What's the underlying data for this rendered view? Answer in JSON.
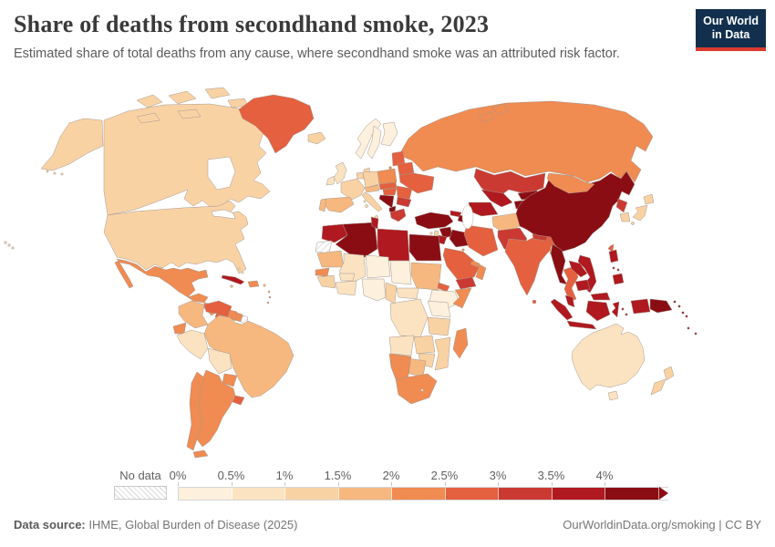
{
  "header": {
    "title": "Share of deaths from secondhand smoke, 2023",
    "subtitle": "Estimated share of total deaths from any cause, where secondhand smoke was an attributed risk factor.",
    "logo": {
      "line1": "Our World",
      "line2": "in Data",
      "bg_color": "#12304e",
      "accent_color": "#dc3a30"
    }
  },
  "legend": {
    "no_data_label": "No data",
    "bins": [
      {
        "label": "0%",
        "color": "#fdf0dc"
      },
      {
        "label": "0.5%",
        "color": "#fbe3c1"
      },
      {
        "label": "1%",
        "color": "#f9d2a4"
      },
      {
        "label": "1.5%",
        "color": "#f6b87f"
      },
      {
        "label": "2%",
        "color": "#f08b51"
      },
      {
        "label": "2.5%",
        "color": "#e4603f"
      },
      {
        "label": "3%",
        "color": "#ca3a33"
      },
      {
        "label": "3.5%",
        "color": "#b0191f"
      },
      {
        "label": "4%",
        "color": "#8b0d14"
      }
    ]
  },
  "map": {
    "border_color": "#a39990",
    "palette": {
      "0-0.5%": "#fdf0dc",
      "0.5-1%": "#fbe3c1",
      "1-1.5%": "#f9d2a4",
      "1.5-2%": "#f6b87f",
      "2-2.5%": "#f08b51",
      "2.5-3%": "#e4603f",
      "3-3.5%": "#ca3a33",
      "3.5-4%": "#b0191f",
      "4%+": "#8b0d14",
      "no-data": "hatch"
    }
  },
  "chart_data": {
    "type": "heatmap",
    "subtype": "world-choropleth",
    "title": "Share of deaths from secondhand smoke, 2023",
    "unit": "%",
    "legend_bins": [
      "0%",
      "0.5%",
      "1%",
      "1.5%",
      "2%",
      "2.5%",
      "3%",
      "3.5%",
      "4%",
      "4%+"
    ],
    "regions": {
      "united-states": "1-1.5%",
      "canada": "1-1.5%",
      "greenland": "2.5-3%",
      "mexico": "2-2.5%",
      "guatemala-honduras": "2-2.5%",
      "nicaragua-costa-rica": "2-2.5%",
      "panama": "2.5-3%",
      "cuba": "3.5-4%",
      "jamaica": "1.5-2%",
      "hispaniola": "2-2.5%",
      "puerto-rico": "1.5-2%",
      "bahamas": "0.5-1%",
      "lesser-antilles": "2-2.5%",
      "colombia": "1.5-2%",
      "venezuela": "2.5-3%",
      "guyana": "2-2.5%",
      "suriname": "2-2.5%",
      "french-guiana": "no-data",
      "ecuador": "2-2.5%",
      "peru": "0.5-1%",
      "brazil": "1.5-2%",
      "bolivia": "0.5-1%",
      "paraguay": "2-2.5%",
      "uruguay": "2.5-3%",
      "argentina": "2-2.5%",
      "chile": "2-2.5%",
      "iceland": "1-1.5%",
      "united-kingdom": "0.5-1%",
      "ireland": "0.5-1%",
      "norway": "0-0.5%",
      "sweden": "0-0.5%",
      "finland": "0-0.5%",
      "denmark": "1-1.5%",
      "baltics": "2.5-3%",
      "poland": "2-2.5%",
      "germany": "1-1.5%",
      "benelux": "1-1.5%",
      "france": "1-1.5%",
      "spain": "1.5-2%",
      "portugal": "1.5-2%",
      "switzerland-austria": "1.5-2%",
      "italy": "1-1.5%",
      "czech-slovakia": "2.5-3%",
      "hungary": "2.5-3%",
      "romania": "2.5-3%",
      "west-balkans": "4%+",
      "albania-macedonia": "4%+",
      "bulgaria": "3-3.5%",
      "greece": "3-3.5%",
      "belarus": "2.5-3%",
      "ukraine": "2.5-3%",
      "russia": "2-2.5%",
      "turkey": "4%+",
      "cyprus": "1-1.5%",
      "georgia": "3.5-4%",
      "armenia-azerbaijan": "4%+",
      "syria": "4%+",
      "lebanon-israel": "1-1.5%",
      "jordan": "3.5-4%",
      "iraq": "4%+",
      "iran": "2.5-3%",
      "kuwait": "2-2.5%",
      "saudi-arabia": "2.5-3%",
      "yemen": "3-3.5%",
      "oman": "2-2.5%",
      "uae-qatar": "2-2.5%",
      "egypt": "4%+",
      "morocco": "3.5-4%",
      "algeria": "4%+",
      "tunisia": "3.5-4%",
      "libya": "3.5-4%",
      "western-sahara": "no-data",
      "mauritania": "1.5-2%",
      "mali": "0.5-1%",
      "niger": "0-0.5%",
      "chad": "0-0.5%",
      "sudan": "1.5-2%",
      "eritrea": "2.5-3%",
      "ethiopia": "0-0.5%",
      "somalia": "2-2.5%",
      "senegal": "2-2.5%",
      "guinea-region": "1-1.5%",
      "burkina-faso": "0.5-1%",
      "ivory-coast-ghana": "0.5-1%",
      "nigeria": "0-0.5%",
      "cameroon": "1-1.5%",
      "central-african-republic": "0.5-1%",
      "dr-congo": "0.5-1%",
      "uganda-kenya": "0-0.5%",
      "tanzania": "1-1.5%",
      "angola": "0.5-1%",
      "zambia": "1-1.5%",
      "mozambique": "1-1.5%",
      "zimbabwe": "1-1.5%",
      "botswana": "1.5-2%",
      "namibia": "2-2.5%",
      "south-africa": "2-2.5%",
      "lesotho": "1-1.5%",
      "madagascar": "2-2.5%",
      "kazakhstan": "3-3.5%",
      "uzbekistan": "3.5-4%",
      "turkmenistan": "3.5-4%",
      "kyrgyzstan": "4%+",
      "tajikistan": "4%+",
      "afghanistan": "1.5-2%",
      "pakistan": "3-3.5%",
      "india": "2.5-3%",
      "nepal": "3-3.5%",
      "bhutan": "4%+",
      "bangladesh": "1.5-2%",
      "sri-lanka": "2.5-3%",
      "china": "4%+",
      "mongolia": "2-2.5%",
      "north-korea": "3-3.5%",
      "south-korea": "1-1.5%",
      "japan": "1-1.5%",
      "taiwan": "2.5-3%",
      "myanmar": "4%+",
      "thailand": "2.5-3%",
      "laos": "3.5-4%",
      "vietnam": "3.5-4%",
      "cambodia": "3.5-4%",
      "malaysia": "3.5-4%",
      "philippines": "3.5-4%",
      "indonesia": "3.5-4%",
      "papua-new-guinea": "4%+",
      "solomon-islands": "4%+",
      "vanuatu-fiji": "3.5-4%",
      "australia": "0.5-1%",
      "new-zealand": "1-1.5%"
    }
  },
  "footer": {
    "source_label": "Data source:",
    "source_text": " IHME, Global Burden of Disease (2025)",
    "right_text": "OurWorldinData.org/smoking | CC BY"
  }
}
